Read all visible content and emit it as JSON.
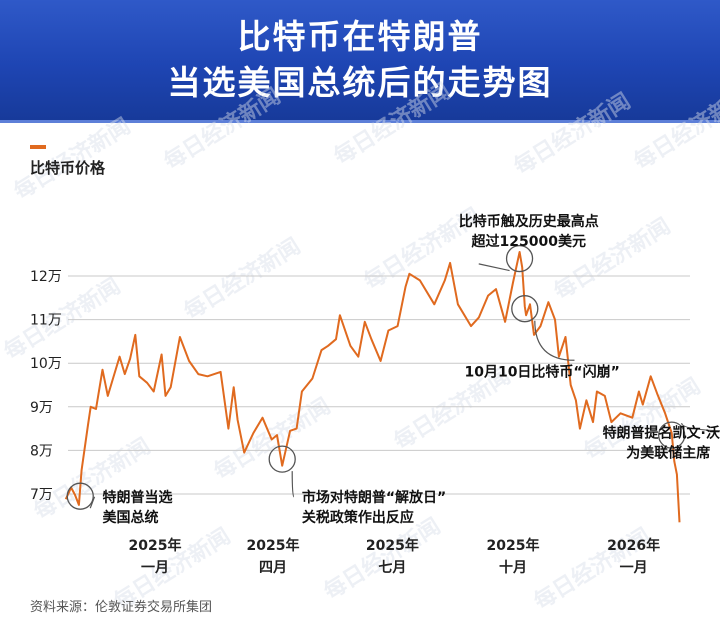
{
  "header": {
    "title_line1": "比特币在特朗普",
    "title_line2": "当选美国总统后的走势图"
  },
  "legend": {
    "label": "比特币价格",
    "color": "#e06a1f"
  },
  "footer": {
    "source": "资料来源：伦敦证券交易所集团"
  },
  "watermark": {
    "text": "每日经济新闻"
  },
  "chart_data": {
    "type": "line",
    "title": "比特币在特朗普当选美国总统后的走势图",
    "ylabel": "",
    "xlabel": "",
    "ylim": [
      62000,
      130000
    ],
    "y_ticks": [
      {
        "value": 70000,
        "label": "7万"
      },
      {
        "value": 80000,
        "label": "8万"
      },
      {
        "value": 90000,
        "label": "9万"
      },
      {
        "value": 100000,
        "label": "10万"
      },
      {
        "value": 110000,
        "label": "11万"
      },
      {
        "value": 120000,
        "label": "12万"
      }
    ],
    "x_ticks": [
      {
        "date": "2025-01-01",
        "line1": "2025年",
        "line2": "一月"
      },
      {
        "date": "2025-04-01",
        "line1": "2025年",
        "line2": "四月"
      },
      {
        "date": "2025-07-01",
        "line1": "2025年",
        "line2": "七月"
      },
      {
        "date": "2025-10-01",
        "line1": "2025年",
        "line2": "十月"
      },
      {
        "date": "2026-01-01",
        "line1": "2026年",
        "line2": "一月"
      }
    ],
    "grid": true,
    "series": [
      {
        "name": "比特币价格",
        "color": "#e06a1f",
        "points": [
          [
            "2024-10-25",
            68800
          ],
          [
            "2024-10-29",
            71500
          ],
          [
            "2024-11-01",
            69800
          ],
          [
            "2024-11-04",
            67500
          ],
          [
            "2024-11-06",
            75500
          ],
          [
            "2024-11-11",
            86000
          ],
          [
            "2024-11-13",
            90000
          ],
          [
            "2024-11-17",
            89500
          ],
          [
            "2024-11-22",
            98500
          ],
          [
            "2024-11-26",
            92500
          ],
          [
            "2024-11-30",
            96500
          ],
          [
            "2024-12-05",
            101500
          ],
          [
            "2024-12-09",
            97500
          ],
          [
            "2024-12-13",
            101000
          ],
          [
            "2024-12-17",
            106500
          ],
          [
            "2024-12-20",
            97000
          ],
          [
            "2024-12-26",
            95500
          ],
          [
            "2024-12-31",
            93500
          ],
          [
            "2025-01-06",
            102000
          ],
          [
            "2025-01-09",
            92500
          ],
          [
            "2025-01-13",
            94500
          ],
          [
            "2025-01-20",
            106000
          ],
          [
            "2025-01-27",
            100500
          ],
          [
            "2025-02-03",
            97500
          ],
          [
            "2025-02-10",
            97000
          ],
          [
            "2025-02-20",
            98000
          ],
          [
            "2025-02-26",
            85000
          ],
          [
            "2025-03-02",
            94500
          ],
          [
            "2025-03-05",
            87000
          ],
          [
            "2025-03-10",
            79500
          ],
          [
            "2025-03-17",
            84000
          ],
          [
            "2025-03-24",
            87500
          ],
          [
            "2025-03-31",
            82500
          ],
          [
            "2025-04-04",
            83500
          ],
          [
            "2025-04-08",
            76500
          ],
          [
            "2025-04-14",
            84500
          ],
          [
            "2025-04-19",
            85000
          ],
          [
            "2025-04-23",
            93500
          ],
          [
            "2025-05-01",
            96500
          ],
          [
            "2025-05-08",
            103000
          ],
          [
            "2025-05-13",
            104000
          ],
          [
            "2025-05-19",
            105500
          ],
          [
            "2025-05-22",
            111000
          ],
          [
            "2025-05-30",
            104000
          ],
          [
            "2025-06-05",
            101500
          ],
          [
            "2025-06-10",
            109500
          ],
          [
            "2025-06-15",
            105500
          ],
          [
            "2025-06-22",
            100500
          ],
          [
            "2025-06-28",
            107500
          ],
          [
            "2025-07-05",
            108500
          ],
          [
            "2025-07-11",
            117500
          ],
          [
            "2025-07-14",
            120500
          ],
          [
            "2025-07-22",
            119000
          ],
          [
            "2025-08-02",
            113500
          ],
          [
            "2025-08-10",
            119000
          ],
          [
            "2025-08-14",
            123000
          ],
          [
            "2025-08-20",
            113500
          ],
          [
            "2025-08-30",
            108500
          ],
          [
            "2025-09-05",
            110500
          ],
          [
            "2025-09-12",
            115500
          ],
          [
            "2025-09-18",
            117000
          ],
          [
            "2025-09-25",
            109500
          ],
          [
            "2025-10-01",
            118500
          ],
          [
            "2025-10-06",
            125500
          ],
          [
            "2025-10-08",
            122000
          ],
          [
            "2025-10-10",
            113000
          ],
          [
            "2025-10-11",
            111000
          ],
          [
            "2025-10-14",
            113500
          ],
          [
            "2025-10-17",
            106500
          ],
          [
            "2025-10-22",
            108500
          ],
          [
            "2025-10-28",
            114000
          ],
          [
            "2025-11-02",
            110000
          ],
          [
            "2025-11-05",
            101500
          ],
          [
            "2025-11-10",
            106000
          ],
          [
            "2025-11-14",
            95000
          ],
          [
            "2025-11-18",
            91500
          ],
          [
            "2025-11-21",
            85000
          ],
          [
            "2025-11-26",
            91500
          ],
          [
            "2025-12-01",
            86500
          ],
          [
            "2025-12-04",
            93500
          ],
          [
            "2025-12-10",
            92500
          ],
          [
            "2025-12-15",
            86500
          ],
          [
            "2025-12-22",
            88500
          ],
          [
            "2025-12-31",
            87500
          ],
          [
            "2026-01-05",
            93500
          ],
          [
            "2026-01-08",
            90500
          ],
          [
            "2026-01-14",
            97000
          ],
          [
            "2026-01-19",
            93000
          ],
          [
            "2026-01-25",
            88500
          ],
          [
            "2026-01-30",
            84000
          ],
          [
            "2026-02-01",
            77500
          ],
          [
            "2026-02-03",
            74500
          ],
          [
            "2026-02-05",
            63500
          ]
        ]
      }
    ],
    "annotations": [
      {
        "id": "ann-election",
        "date": "2024-11-05",
        "value": 69500,
        "lines": [
          "特朗普当选",
          "美国总统"
        ],
        "text_date": "2024-11-22",
        "text_value": 68200
      },
      {
        "id": "ann-liberation",
        "date": "2025-04-08",
        "value": 78000,
        "lines": [
          "市场对特朗普“解放日”",
          "关税政策作出反应"
        ],
        "text_date": "2025-04-23",
        "text_value": 68200
      },
      {
        "id": "ann-ath",
        "date": "2025-10-06",
        "value": 124000,
        "lines": [
          "比特币触及历史最高点",
          "超过125000美元"
        ],
        "text_date": "2025-08-13",
        "text_value": 131500
      },
      {
        "id": "ann-crash",
        "date": "2025-10-10",
        "value": 112500,
        "lines": [
          "10月10日比特币“闪崩”"
        ],
        "text_date": "2025-08-25",
        "text_value": 97000
      },
      {
        "id": "ann-warsh",
        "date": "2026-01-30",
        "value": 83500,
        "lines": [
          "特朗普提名凯文·沃什",
          "为美联储主席"
        ],
        "text_date": "2025-12-05",
        "text_value": 83000
      }
    ]
  }
}
